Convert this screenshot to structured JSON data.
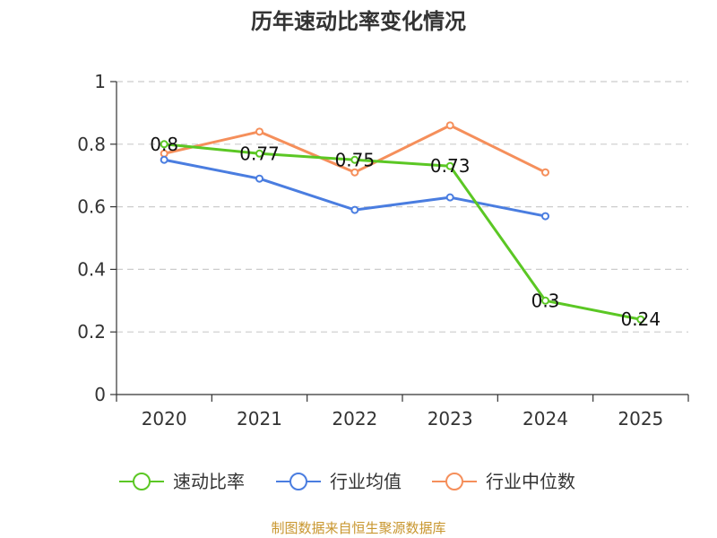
{
  "chart_data": {
    "type": "line",
    "title": "历年速动比率变化情况",
    "categories": [
      "2020",
      "2021",
      "2022",
      "2023",
      "2024",
      "2025"
    ],
    "ylim": [
      0,
      1
    ],
    "yticks": [
      "0",
      "0.2",
      "0.4",
      "0.6",
      "0.8",
      "1"
    ],
    "grid": true,
    "legend_position": "bottom",
    "series": [
      {
        "name": "速动比率",
        "color": "#5bc724",
        "values": [
          0.8,
          0.77,
          0.75,
          0.73,
          0.3,
          0.24
        ],
        "labels": [
          "0.8",
          "0.77",
          "0.75",
          "0.73",
          "0.3",
          "0.24"
        ]
      },
      {
        "name": "行业均值",
        "color": "#4a7de0",
        "values": [
          0.75,
          0.69,
          0.59,
          0.63,
          0.57,
          null
        ]
      },
      {
        "name": "行业中位数",
        "color": "#f58f5b",
        "values": [
          0.77,
          0.84,
          0.71,
          0.86,
          0.71,
          null
        ]
      }
    ],
    "source": "制图数据来自恒生聚源数据库"
  }
}
